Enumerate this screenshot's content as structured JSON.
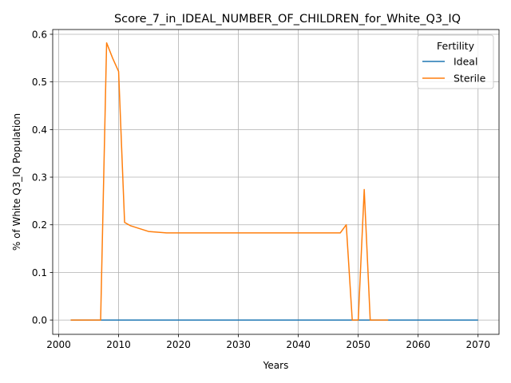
{
  "chart_data": {
    "type": "line",
    "title": "Score_7_in_IDEAL_NUMBER_OF_CHILDREN_for_White_Q3_IQ",
    "xlabel": "Years",
    "ylabel": "% of White Q3_IQ Population",
    "xlim": [
      1999,
      2073.5
    ],
    "ylim": [
      -0.03,
      0.61
    ],
    "xticks": [
      2000,
      2010,
      2020,
      2030,
      2040,
      2050,
      2060,
      2070
    ],
    "yticks": [
      0.0,
      0.1,
      0.2,
      0.3,
      0.4,
      0.5,
      0.6
    ],
    "xtick_labels": [
      "2000",
      "2010",
      "2020",
      "2030",
      "2040",
      "2050",
      "2060",
      "2070"
    ],
    "ytick_labels": [
      "0.0",
      "0.1",
      "0.2",
      "0.3",
      "0.4",
      "0.5",
      "0.6"
    ],
    "grid": true,
    "legend": {
      "title": "Fertility",
      "placement": "top-right"
    },
    "series": [
      {
        "name": "Ideal",
        "color": "#1f77b4",
        "x": [
          2002,
          2070
        ],
        "y": [
          0.0,
          0.0
        ]
      },
      {
        "name": "Sterile",
        "color": "#ff7f0e",
        "x": [
          2002,
          2007,
          2008,
          2009,
          2010,
          2011,
          2012,
          2015,
          2018,
          2020,
          2025,
          2030,
          2040,
          2047,
          2048,
          2049,
          2050,
          2051,
          2052,
          2055
        ],
        "y": [
          0.0,
          0.0,
          0.582,
          0.55,
          0.522,
          0.205,
          0.198,
          0.186,
          0.183,
          0.183,
          0.183,
          0.183,
          0.183,
          0.183,
          0.2,
          0.0,
          0.0,
          0.274,
          0.0,
          0.0
        ]
      }
    ]
  }
}
